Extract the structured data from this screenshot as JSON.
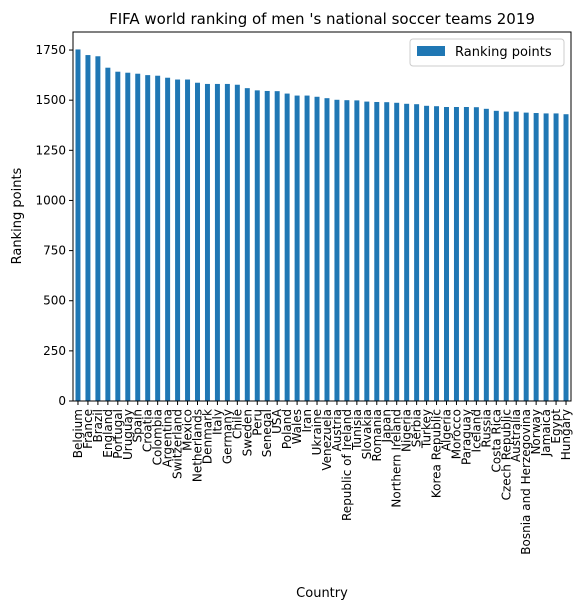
{
  "chart_data": {
    "type": "bar",
    "title": "FIFA world ranking of men 's national soccer teams 2019",
    "xlabel": "Country",
    "ylabel": "Ranking points",
    "ylim": [
      0,
      1840
    ],
    "yticks": [
      0,
      250,
      500,
      750,
      1000,
      1250,
      1500,
      1750
    ],
    "grid": false,
    "legend_position": "top-right",
    "bar_color": "#1f77b4",
    "categories": [
      "Belgium",
      "France",
      "Brazil",
      "England",
      "Portugal",
      "Uruguay",
      "Spain",
      "Croatia",
      "Colombia",
      "Argentina",
      "Switzerland",
      "Mexico",
      "Netherlands",
      "Denmark",
      "Italy",
      "Germany",
      "Chile",
      "Sweden",
      "Peru",
      "Senegal",
      "USA",
      "Poland",
      "Wales",
      "Iran",
      "Ukraine",
      "Venezuela",
      "Austria",
      "Republic of Ireland",
      "Tunisia",
      "Slovakia",
      "Romania",
      "Japan",
      "Northern Ireland",
      "Nigeria",
      "Serbia",
      "Turkey",
      "Korea Republic",
      "Algeria",
      "Morocco",
      "Paraguay",
      "Iceland",
      "Russia",
      "Costa Rica",
      "Czech Republic",
      "Australia",
      "Bosnia and Herzegovina",
      "Norway",
      "Jamaica",
      "Egypt",
      "Hungary"
    ],
    "series": [
      {
        "name": "Ranking points",
        "values": [
          1753,
          1725,
          1719,
          1662,
          1642,
          1637,
          1632,
          1625,
          1622,
          1612,
          1603,
          1603,
          1587,
          1581,
          1581,
          1581,
          1577,
          1560,
          1549,
          1546,
          1545,
          1533,
          1523,
          1523,
          1517,
          1510,
          1502,
          1500,
          1499,
          1493,
          1491,
          1490,
          1487,
          1482,
          1480,
          1472,
          1470,
          1466,
          1466,
          1466,
          1465,
          1457,
          1447,
          1443,
          1443,
          1438,
          1436,
          1434,
          1434,
          1430
        ]
      }
    ]
  }
}
